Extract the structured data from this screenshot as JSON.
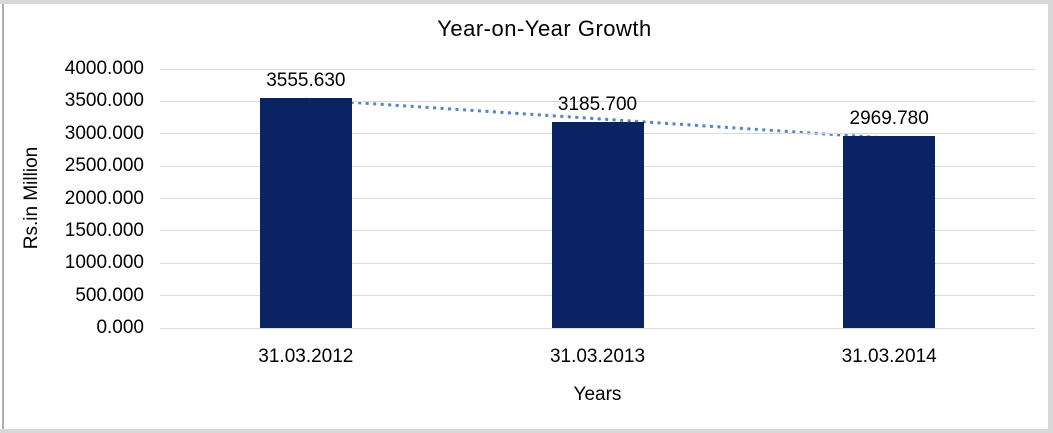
{
  "chart": {
    "title": "Year-on-Year Growth",
    "y_axis_title": "Rs.in Million",
    "x_axis_title": "Years"
  },
  "chart_data": {
    "type": "bar",
    "title": "Year-on-Year Growth",
    "categories": [
      "31.03.2012",
      "31.03.2013",
      "31.03.2014"
    ],
    "values": [
      3555.63,
      3185.7,
      2969.78
    ],
    "data_labels": [
      "3555.630",
      "3185.700",
      "2969.780"
    ],
    "xlabel": "Years",
    "ylabel": "Rs.in Million",
    "ylim": [
      0,
      4000
    ],
    "y_tick_interval": 500,
    "y_tick_labels": [
      "0.000",
      "500.000",
      "1000.000",
      "1500.000",
      "2000.000",
      "2500.000",
      "3000.000",
      "3500.000",
      "4000.000"
    ],
    "grid": "horizontal-only",
    "legend": "none",
    "bar_color": "#0a2463",
    "gridline_color": "#d9d9d9",
    "trendline": {
      "style": "dotted",
      "color": "#4f86c6",
      "span": "bar1-top to bar3-top, declining"
    },
    "text_color": "#000000"
  }
}
